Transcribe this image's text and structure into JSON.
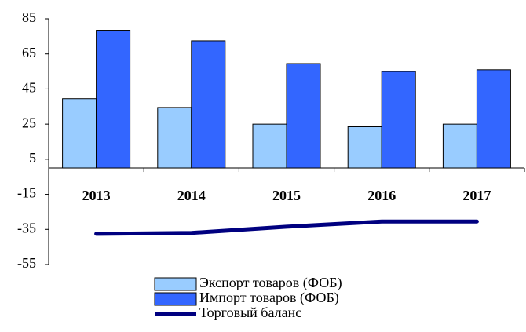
{
  "chart_data": {
    "type": "bar",
    "categories": [
      "2013",
      "2014",
      "2015",
      "2016",
      "2017"
    ],
    "series": [
      {
        "name": "Экспорт товаров (ФОБ)",
        "type": "bar",
        "color": "#99ccff",
        "values": [
          39.5,
          34.5,
          25,
          23.5,
          25
        ]
      },
      {
        "name": "Импорт товаров (ФОБ)",
        "type": "bar",
        "color": "#3366ff",
        "values": [
          78.5,
          72.5,
          59.5,
          55,
          56
        ]
      },
      {
        "name": "Торговый баланс",
        "type": "line",
        "color": "#000080",
        "values": [
          -37.5,
          -37,
          -33.5,
          -30.5,
          -30.5
        ]
      }
    ],
    "ylim": [
      -55,
      85
    ],
    "yticks": [
      85,
      65,
      45,
      25,
      5,
      -15,
      -35,
      -55
    ]
  }
}
